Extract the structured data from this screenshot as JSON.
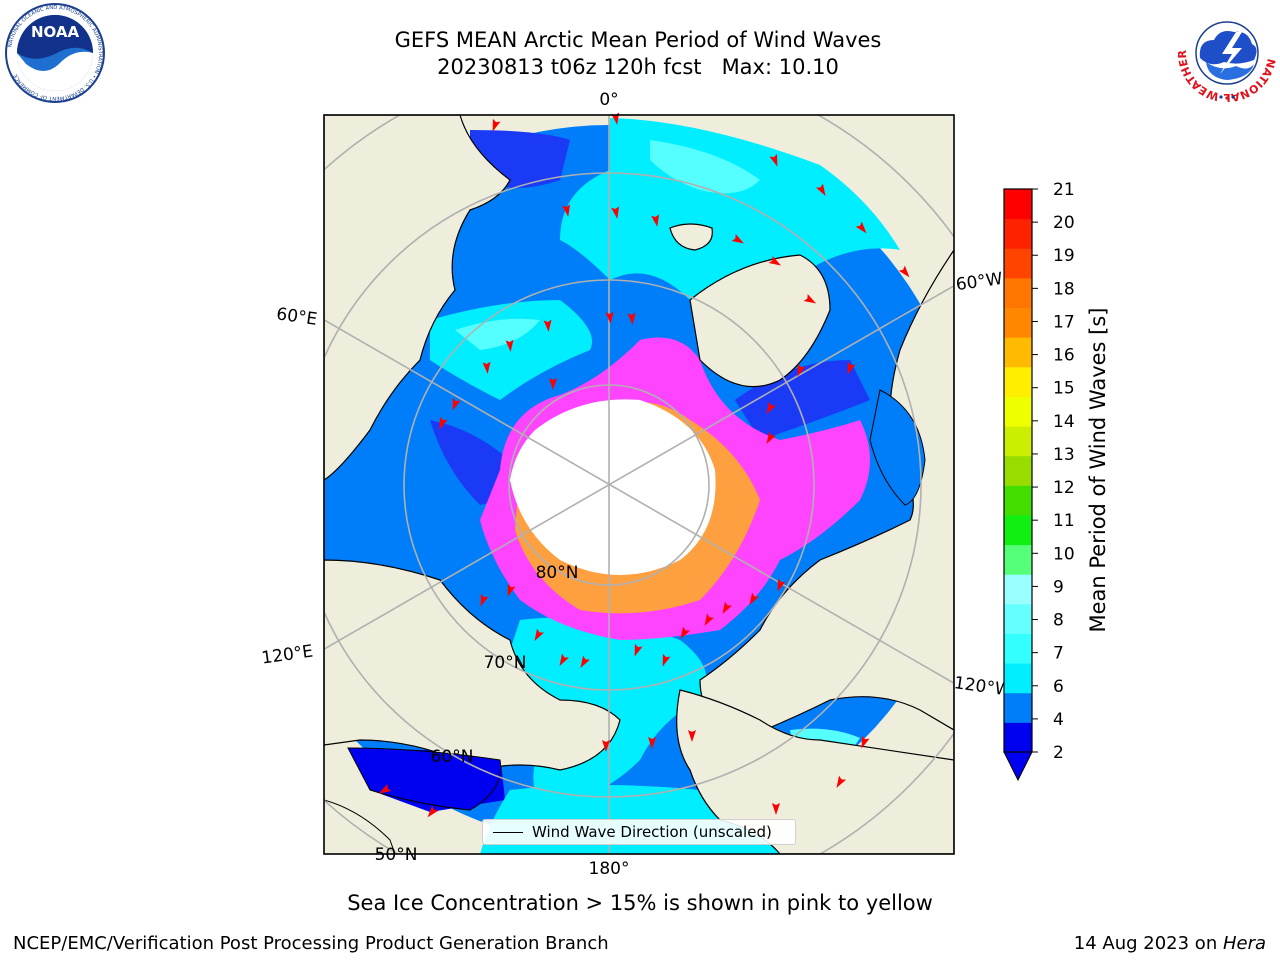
{
  "title_line1": "GEFS MEAN Arctic Mean Period of Wind Waves",
  "title_line2": "20230813 t06z 120h fcst   Max: 10.10",
  "logos": {
    "noaa": {
      "text": "NOAA",
      "ring_text": "NATIONAL OCEANIC AND ATMOSPHERIC ADMINISTRATION • U.S. DEPARTMENT OF COMMERCE"
    },
    "nws": {
      "ring_text": "NATIONAL WEATHER SERVICE"
    }
  },
  "map": {
    "longitude_labels": [
      "0°",
      "60°E",
      "120°E",
      "180°",
      "120°W",
      "60°W"
    ],
    "latitude_labels": [
      "80°N",
      "70°N",
      "60°N",
      "50°N"
    ],
    "colors": {
      "land": "#efeedc",
      "ocean_dark_blue": "#0000f0",
      "ocean_mid_blue": "#007df8",
      "ocean_cyan": "#00eeff",
      "ocean_light_cyan": "#55ffff",
      "ice_magenta": "#ff33ff",
      "ice_orange": "#ffa040",
      "grid": "#b0b0b0",
      "arrow": "#ff0000"
    }
  },
  "legend": {
    "label": "Wind Wave Direction (unscaled)"
  },
  "colorbar": {
    "label": "Mean Period of Wind Waves [s]",
    "ticks": [
      "2",
      "4",
      "6",
      "7",
      "8",
      "9",
      "10",
      "11",
      "12",
      "13",
      "14",
      "15",
      "16",
      "17",
      "18",
      "19",
      "20",
      "21"
    ],
    "colors": [
      "#0000f0",
      "#007df8",
      "#00eeff",
      "#33ffff",
      "#66ffff",
      "#99ffff",
      "#55ff77",
      "#11ee11",
      "#44dd00",
      "#99dd00",
      "#ccee00",
      "#eeff00",
      "#ffee00",
      "#ffbb00",
      "#ff8800",
      "#ff7700",
      "#ff4400",
      "#ff2200",
      "#ff0000"
    ]
  },
  "caption": "Sea Ice Concentration > 15% is shown in pink to yellow",
  "footer_left": "NCEP/EMC/Verification Post Processing Product Generation Branch",
  "footer_right_prefix": "14 Aug 2023 on ",
  "footer_right_machine": "Hera"
}
